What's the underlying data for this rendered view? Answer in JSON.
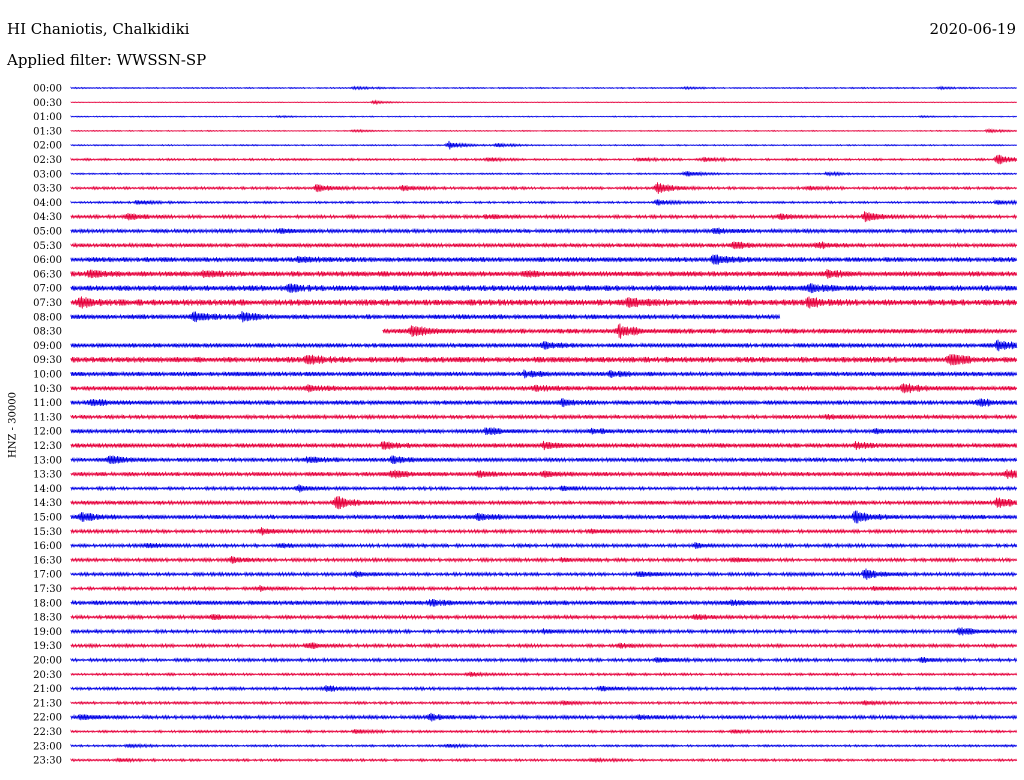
{
  "header": {
    "station": "HI Chaniotis, Chalkidiki",
    "date": "2020-06-19",
    "filter": "Applied filter: WWSSN-SP"
  },
  "y_axis_label": "HNZ - 30000",
  "colors": {
    "blue": "#0000e6",
    "red": "#e6003c"
  },
  "chart_data": {
    "type": "line",
    "title": "HI Chaniotis, Chalkidiki",
    "subtitle": "Applied filter: WWSSN-SP",
    "ylabel": "HNZ - 30000",
    "xlabel": "",
    "tick_labels": [
      "00:00",
      "00:30",
      "01:00",
      "01:30",
      "02:00",
      "02:30",
      "03:00",
      "03:30",
      "04:00",
      "04:30",
      "05:00",
      "05:30",
      "06:00",
      "06:30",
      "07:00",
      "07:30",
      "08:00",
      "08:30",
      "09:00",
      "09:30",
      "10:00",
      "10:30",
      "11:00",
      "11:30",
      "12:00",
      "12:30",
      "13:00",
      "13:30",
      "14:00",
      "14:30",
      "15:00",
      "15:30",
      "16:00",
      "16:30",
      "17:00",
      "17:30",
      "18:00",
      "18:30",
      "19:00",
      "19:30",
      "20:00",
      "20:30",
      "21:00",
      "21:30",
      "22:00",
      "22:30",
      "23:00",
      "23:30"
    ],
    "trace_colors": [
      "blue",
      "red"
    ],
    "rows": [
      {
        "label": "00:00",
        "noise": 0.5,
        "start": 0,
        "end": 1,
        "events": [
          [
            0.3,
            1.2
          ],
          [
            0.65,
            1.0
          ],
          [
            0.92,
            0.8
          ]
        ]
      },
      {
        "label": "00:30",
        "noise": 0.3,
        "start": 0,
        "end": 1,
        "events": [
          [
            0.32,
            1.5
          ]
        ]
      },
      {
        "label": "01:00",
        "noise": 0.4,
        "start": 0,
        "end": 1,
        "events": [
          [
            0.22,
            0.8
          ],
          [
            0.9,
            0.8
          ]
        ]
      },
      {
        "label": "01:30",
        "noise": 0.4,
        "start": 0,
        "end": 1,
        "events": [
          [
            0.3,
            1.0
          ],
          [
            0.97,
            1.5
          ]
        ]
      },
      {
        "label": "02:00",
        "noise": 0.5,
        "start": 0,
        "end": 1,
        "events": [
          [
            0.4,
            4.0
          ],
          [
            0.45,
            2.0
          ]
        ]
      },
      {
        "label": "02:30",
        "noise": 0.8,
        "start": 0,
        "end": 1,
        "events": [
          [
            0.44,
            2.0
          ],
          [
            0.6,
            1.5
          ],
          [
            0.67,
            2.0
          ],
          [
            0.98,
            5.0
          ]
        ]
      },
      {
        "label": "03:00",
        "noise": 0.6,
        "start": 0,
        "end": 1,
        "events": [
          [
            0.65,
            3.0
          ],
          [
            0.8,
            1.5
          ]
        ]
      },
      {
        "label": "03:30",
        "noise": 1.0,
        "start": 0,
        "end": 1,
        "events": [
          [
            0.26,
            4.0
          ],
          [
            0.35,
            3.0
          ],
          [
            0.62,
            6.0
          ],
          [
            0.78,
            2.0
          ]
        ]
      },
      {
        "label": "04:00",
        "noise": 0.8,
        "start": 0,
        "end": 1,
        "events": [
          [
            0.07,
            2.0
          ],
          [
            0.62,
            3.0
          ],
          [
            0.98,
            2.0
          ]
        ]
      },
      {
        "label": "04:30",
        "noise": 1.3,
        "start": 0,
        "end": 1,
        "events": [
          [
            0.06,
            3.0
          ],
          [
            0.44,
            2.0
          ],
          [
            0.75,
            2.5
          ],
          [
            0.84,
            5.0
          ]
        ]
      },
      {
        "label": "05:00",
        "noise": 1.5,
        "start": 0,
        "end": 1,
        "events": [
          [
            0.22,
            2.0
          ],
          [
            0.68,
            2.5
          ]
        ]
      },
      {
        "label": "05:30",
        "noise": 1.6,
        "start": 0,
        "end": 1,
        "events": [
          [
            0.7,
            4.0
          ],
          [
            0.79,
            3.0
          ]
        ]
      },
      {
        "label": "06:00",
        "noise": 2.0,
        "start": 0,
        "end": 1,
        "events": [
          [
            0.24,
            3.0
          ],
          [
            0.68,
            5.0
          ]
        ]
      },
      {
        "label": "06:30",
        "noise": 2.2,
        "start": 0,
        "end": 1,
        "events": [
          [
            0.02,
            3.0
          ],
          [
            0.14,
            3.0
          ],
          [
            0.48,
            2.5
          ],
          [
            0.8,
            3.0
          ]
        ]
      },
      {
        "label": "07:00",
        "noise": 2.4,
        "start": 0,
        "end": 1,
        "events": [
          [
            0.23,
            3.0
          ],
          [
            0.78,
            3.0
          ]
        ]
      },
      {
        "label": "07:30",
        "noise": 2.6,
        "start": 0,
        "end": 1,
        "events": [
          [
            0.01,
            4.0
          ],
          [
            0.59,
            4.5
          ],
          [
            0.78,
            4.0
          ]
        ]
      },
      {
        "label": "08:00",
        "noise": 2.0,
        "start": 0,
        "end": 0.75,
        "events": [
          [
            0.13,
            5.0
          ],
          [
            0.18,
            4.0
          ]
        ]
      },
      {
        "label": "08:30",
        "noise": 2.0,
        "start": 0.33,
        "end": 1,
        "events": [
          [
            0.36,
            5.0
          ],
          [
            0.58,
            6.0
          ]
        ]
      },
      {
        "label": "09:00",
        "noise": 1.8,
        "start": 0,
        "end": 1,
        "events": [
          [
            0.5,
            3.0
          ],
          [
            0.98,
            5.0
          ]
        ]
      },
      {
        "label": "09:30",
        "noise": 2.4,
        "start": 0,
        "end": 1,
        "events": [
          [
            0.25,
            4.0
          ],
          [
            0.93,
            6.0
          ]
        ]
      },
      {
        "label": "10:00",
        "noise": 1.8,
        "start": 0,
        "end": 1,
        "events": [
          [
            0.48,
            3.0
          ],
          [
            0.57,
            3.0
          ]
        ]
      },
      {
        "label": "10:30",
        "noise": 1.8,
        "start": 0,
        "end": 1,
        "events": [
          [
            0.25,
            3.0
          ],
          [
            0.49,
            3.0
          ],
          [
            0.88,
            4.5
          ]
        ]
      },
      {
        "label": "11:00",
        "noise": 1.8,
        "start": 0,
        "end": 1,
        "events": [
          [
            0.02,
            3.0
          ],
          [
            0.52,
            3.0
          ],
          [
            0.96,
            3.5
          ]
        ]
      },
      {
        "label": "11:30",
        "noise": 1.5,
        "start": 0,
        "end": 1,
        "events": [
          [
            0.13,
            2.0
          ],
          [
            0.8,
            2.0
          ]
        ]
      },
      {
        "label": "12:00",
        "noise": 1.6,
        "start": 0,
        "end": 1,
        "events": [
          [
            0.44,
            4.0
          ],
          [
            0.55,
            2.5
          ],
          [
            0.85,
            2.0
          ]
        ]
      },
      {
        "label": "12:30",
        "noise": 1.8,
        "start": 0,
        "end": 1,
        "events": [
          [
            0.33,
            3.5
          ],
          [
            0.5,
            3.0
          ],
          [
            0.83,
            3.0
          ]
        ]
      },
      {
        "label": "13:00",
        "noise": 1.6,
        "start": 0,
        "end": 1,
        "events": [
          [
            0.04,
            4.0
          ],
          [
            0.25,
            3.0
          ],
          [
            0.34,
            4.0
          ]
        ]
      },
      {
        "label": "13:30",
        "noise": 1.7,
        "start": 0,
        "end": 1,
        "events": [
          [
            0.34,
            4.0
          ],
          [
            0.43,
            3.0
          ],
          [
            0.5,
            3.0
          ],
          [
            0.99,
            4.0
          ]
        ]
      },
      {
        "label": "14:00",
        "noise": 1.2,
        "start": 0,
        "end": 1,
        "events": [
          [
            0.24,
            3.0
          ],
          [
            0.52,
            2.0
          ]
        ]
      },
      {
        "label": "14:30",
        "noise": 1.6,
        "start": 0,
        "end": 1,
        "events": [
          [
            0.28,
            7.0
          ],
          [
            0.98,
            5.0
          ]
        ]
      },
      {
        "label": "15:00",
        "noise": 1.8,
        "start": 0,
        "end": 1,
        "events": [
          [
            0.01,
            4.0
          ],
          [
            0.43,
            3.0
          ],
          [
            0.83,
            6.0
          ]
        ]
      },
      {
        "label": "15:30",
        "noise": 1.3,
        "start": 0,
        "end": 1,
        "events": [
          [
            0.2,
            3.0
          ],
          [
            0.55,
            2.0
          ]
        ]
      },
      {
        "label": "16:00",
        "noise": 1.3,
        "start": 0,
        "end": 1,
        "events": [
          [
            0.08,
            2.0
          ],
          [
            0.22,
            2.0
          ],
          [
            0.66,
            2.0
          ]
        ]
      },
      {
        "label": "16:30",
        "noise": 1.3,
        "start": 0,
        "end": 1,
        "events": [
          [
            0.17,
            3.0
          ],
          [
            0.52,
            2.0
          ],
          [
            0.7,
            2.0
          ]
        ]
      },
      {
        "label": "17:00",
        "noise": 1.3,
        "start": 0,
        "end": 1,
        "events": [
          [
            0.3,
            2.5
          ],
          [
            0.6,
            3.0
          ],
          [
            0.84,
            5.0
          ]
        ]
      },
      {
        "label": "17:30",
        "noise": 1.2,
        "start": 0,
        "end": 1,
        "events": [
          [
            0.2,
            2.0
          ],
          [
            0.85,
            2.0
          ]
        ]
      },
      {
        "label": "18:00",
        "noise": 1.8,
        "start": 0,
        "end": 1,
        "events": [
          [
            0.38,
            3.0
          ],
          [
            0.7,
            2.0
          ]
        ]
      },
      {
        "label": "18:30",
        "noise": 1.4,
        "start": 0,
        "end": 1,
        "events": [
          [
            0.15,
            2.0
          ],
          [
            0.66,
            2.5
          ]
        ]
      },
      {
        "label": "19:00",
        "noise": 1.3,
        "start": 0,
        "end": 1,
        "events": [
          [
            0.5,
            2.0
          ],
          [
            0.94,
            4.0
          ]
        ]
      },
      {
        "label": "19:30",
        "noise": 1.3,
        "start": 0,
        "end": 1,
        "events": [
          [
            0.25,
            3.0
          ],
          [
            0.58,
            2.0
          ]
        ]
      },
      {
        "label": "20:00",
        "noise": 1.2,
        "start": 0,
        "end": 1,
        "events": [
          [
            0.62,
            2.5
          ],
          [
            0.9,
            2.0
          ]
        ]
      },
      {
        "label": "20:30",
        "noise": 0.9,
        "start": 0,
        "end": 1,
        "events": [
          [
            0.42,
            2.0
          ]
        ]
      },
      {
        "label": "21:00",
        "noise": 1.1,
        "start": 0,
        "end": 1,
        "events": [
          [
            0.27,
            3.0
          ],
          [
            0.56,
            2.0
          ]
        ]
      },
      {
        "label": "21:30",
        "noise": 1.0,
        "start": 0,
        "end": 1,
        "events": [
          [
            0.52,
            2.0
          ],
          [
            0.84,
            2.0
          ]
        ]
      },
      {
        "label": "22:00",
        "noise": 1.4,
        "start": 0,
        "end": 1,
        "events": [
          [
            0.01,
            3.0
          ],
          [
            0.38,
            3.5
          ],
          [
            0.6,
            2.0
          ]
        ]
      },
      {
        "label": "22:30",
        "noise": 0.9,
        "start": 0,
        "end": 1,
        "events": [
          [
            0.3,
            2.0
          ],
          [
            0.7,
            1.5
          ]
        ]
      },
      {
        "label": "23:00",
        "noise": 0.8,
        "start": 0,
        "end": 1,
        "events": [
          [
            0.06,
            1.5
          ],
          [
            0.4,
            1.5
          ]
        ]
      },
      {
        "label": "23:30",
        "noise": 0.9,
        "start": 0,
        "end": 1,
        "events": [
          [
            0.05,
            1.5
          ],
          [
            0.55,
            1.5
          ]
        ]
      }
    ]
  }
}
